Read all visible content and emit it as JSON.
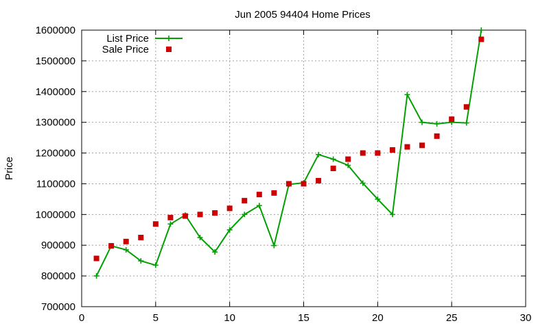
{
  "chart_data": {
    "type": "line",
    "title": "Jun 2005 94404 Home Prices",
    "xlabel": "",
    "ylabel": "Price",
    "xlim": [
      0,
      30
    ],
    "ylim": [
      700000,
      1600000
    ],
    "xticks": [
      0,
      5,
      10,
      15,
      20,
      25,
      30
    ],
    "yticks": [
      700000,
      800000,
      900000,
      1000000,
      1100000,
      1200000,
      1300000,
      1400000,
      1500000,
      1600000
    ],
    "grid": true,
    "legend_position": "top-left",
    "x": [
      1,
      2,
      3,
      4,
      5,
      6,
      7,
      8,
      9,
      10,
      11,
      12,
      13,
      14,
      15,
      16,
      17,
      18,
      19,
      20,
      21,
      22,
      23,
      24,
      25,
      26,
      27
    ],
    "series": [
      {
        "name": "List Price",
        "style": "line-with-plus-markers",
        "color": "#00a000",
        "values": [
          800000,
          898000,
          885000,
          849000,
          835000,
          969000,
          998000,
          925000,
          878000,
          950000,
          1000000,
          1029000,
          899000,
          1098000,
          1103000,
          1195000,
          1180000,
          1160000,
          1102000,
          1050000,
          1000000,
          1390000,
          1300000,
          1295000,
          1300000,
          1298000,
          1600000
        ]
      },
      {
        "name": "Sale Price",
        "style": "square-markers",
        "color": "#cc0000",
        "values": [
          857000,
          898000,
          912000,
          925000,
          969000,
          990000,
          995000,
          1000000,
          1005000,
          1020000,
          1045000,
          1065000,
          1070000,
          1100000,
          1100000,
          1110000,
          1150000,
          1180000,
          1200000,
          1200000,
          1210000,
          1220000,
          1225000,
          1255000,
          1310000,
          1350000,
          1570000
        ]
      }
    ]
  }
}
